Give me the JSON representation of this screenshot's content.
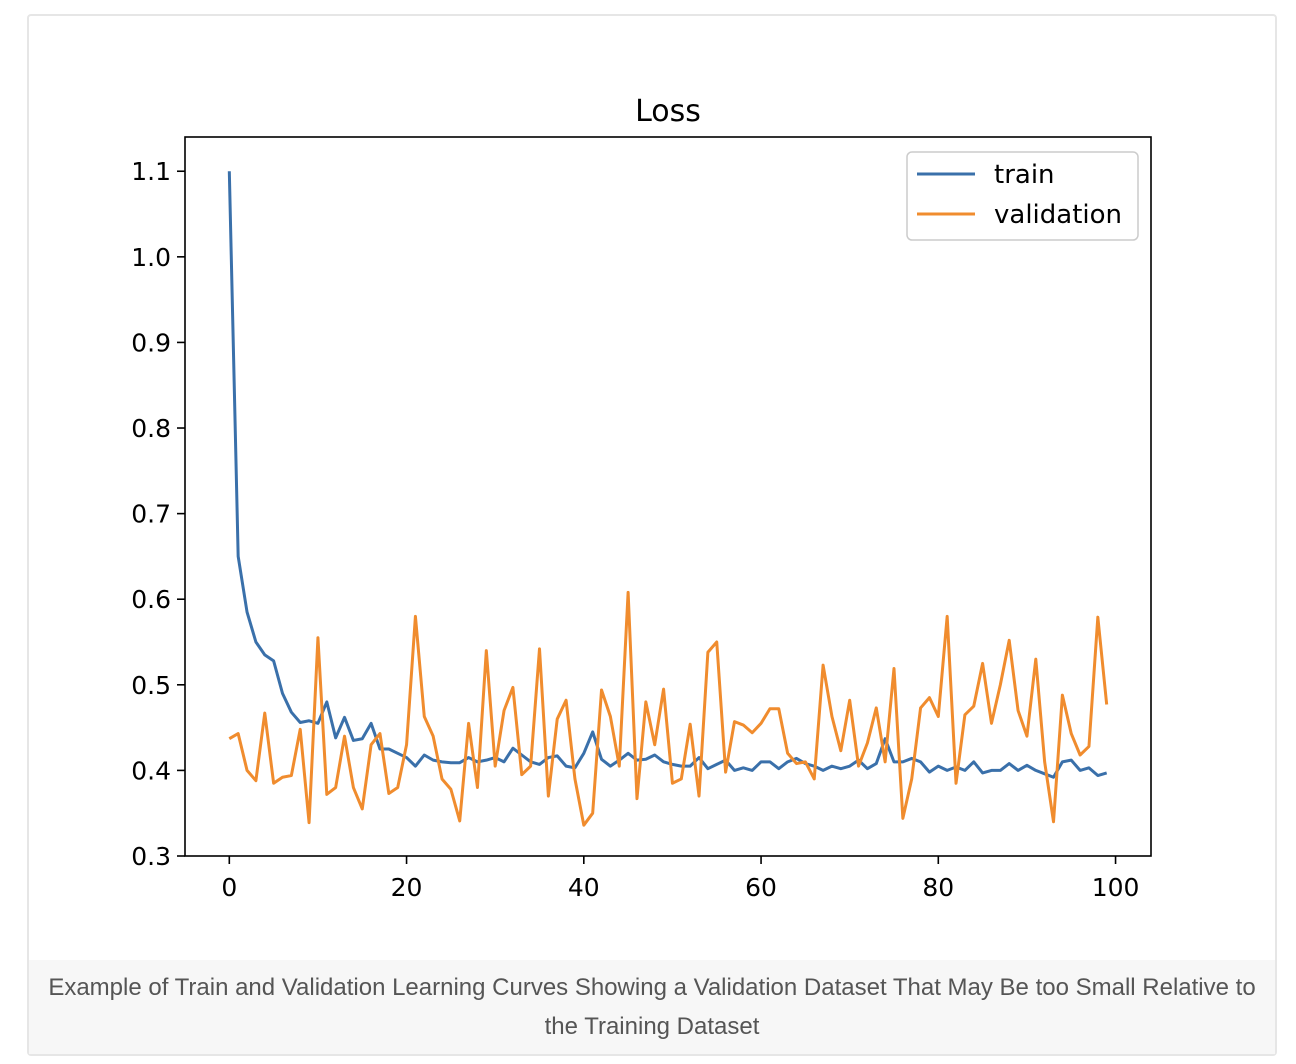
{
  "caption": "Example of Train and Validation Learning Curves Showing a Validation Dataset That May Be too Small Relative to the Training Dataset",
  "chart_data": {
    "type": "line",
    "title": "Loss",
    "xlabel": "",
    "ylabel": "",
    "xlim": [
      -5,
      104
    ],
    "ylim": [
      0.3,
      1.14
    ],
    "xticks": [
      0,
      20,
      40,
      60,
      80,
      100
    ],
    "yticks": [
      0.3,
      0.4,
      0.5,
      0.6,
      0.7,
      0.8,
      0.9,
      1.0,
      1.1
    ],
    "xtick_labels": [
      "0",
      "20",
      "40",
      "60",
      "80",
      "100"
    ],
    "ytick_labels": [
      "0.3",
      "0.4",
      "0.5",
      "0.6",
      "0.7",
      "0.8",
      "0.9",
      "1.0",
      "1.1"
    ],
    "grid": false,
    "legend_position": "top-right",
    "series": [
      {
        "name": "train",
        "color": "#3a70aa",
        "x": [
          0,
          1,
          2,
          3,
          4,
          5,
          6,
          7,
          8,
          9,
          10,
          11,
          12,
          13,
          14,
          15,
          16,
          17,
          18,
          19,
          20,
          21,
          22,
          23,
          24,
          25,
          26,
          27,
          28,
          29,
          30,
          31,
          32,
          33,
          34,
          35,
          36,
          37,
          38,
          39,
          40,
          41,
          42,
          43,
          44,
          45,
          46,
          47,
          48,
          49,
          50,
          51,
          52,
          53,
          54,
          55,
          56,
          57,
          58,
          59,
          60,
          61,
          62,
          63,
          64,
          65,
          66,
          67,
          68,
          69,
          70,
          71,
          72,
          73,
          74,
          75,
          76,
          77,
          78,
          79,
          80,
          81,
          82,
          83,
          84,
          85,
          86,
          87,
          88,
          89,
          90,
          91,
          92,
          93,
          94,
          95,
          96,
          97,
          98,
          99
        ],
        "values": [
          1.1,
          0.65,
          0.585,
          0.55,
          0.535,
          0.528,
          0.49,
          0.468,
          0.456,
          0.458,
          0.455,
          0.48,
          0.438,
          0.462,
          0.435,
          0.437,
          0.455,
          0.425,
          0.425,
          0.42,
          0.415,
          0.405,
          0.418,
          0.412,
          0.41,
          0.409,
          0.409,
          0.415,
          0.41,
          0.412,
          0.415,
          0.41,
          0.426,
          0.418,
          0.41,
          0.407,
          0.415,
          0.417,
          0.405,
          0.403,
          0.42,
          0.445,
          0.413,
          0.405,
          0.412,
          0.42,
          0.412,
          0.413,
          0.418,
          0.41,
          0.407,
          0.405,
          0.405,
          0.415,
          0.402,
          0.407,
          0.412,
          0.4,
          0.403,
          0.4,
          0.41,
          0.41,
          0.402,
          0.41,
          0.414,
          0.408,
          0.405,
          0.4,
          0.405,
          0.402,
          0.405,
          0.412,
          0.402,
          0.408,
          0.437,
          0.41,
          0.41,
          0.414,
          0.41,
          0.398,
          0.405,
          0.4,
          0.404,
          0.4,
          0.41,
          0.397,
          0.4,
          0.4,
          0.408,
          0.4,
          0.406,
          0.4,
          0.396,
          0.392,
          0.41,
          0.412,
          0.4,
          0.403,
          0.394,
          0.397
        ]
      },
      {
        "name": "validation",
        "color": "#f08c2e",
        "x": [
          0,
          1,
          2,
          3,
          4,
          5,
          6,
          7,
          8,
          9,
          10,
          11,
          12,
          13,
          14,
          15,
          16,
          17,
          18,
          19,
          20,
          21,
          22,
          23,
          24,
          25,
          26,
          27,
          28,
          29,
          30,
          31,
          32,
          33,
          34,
          35,
          36,
          37,
          38,
          39,
          40,
          41,
          42,
          43,
          44,
          45,
          46,
          47,
          48,
          49,
          50,
          51,
          52,
          53,
          54,
          55,
          56,
          57,
          58,
          59,
          60,
          61,
          62,
          63,
          64,
          65,
          66,
          67,
          68,
          69,
          70,
          71,
          72,
          73,
          74,
          75,
          76,
          77,
          78,
          79,
          80,
          81,
          82,
          83,
          84,
          85,
          86,
          87,
          88,
          89,
          90,
          91,
          92,
          93,
          94,
          95,
          96,
          97,
          98,
          99
        ],
        "values": [
          0.437,
          0.443,
          0.4,
          0.388,
          0.467,
          0.385,
          0.392,
          0.394,
          0.448,
          0.339,
          0.555,
          0.372,
          0.38,
          0.44,
          0.38,
          0.355,
          0.43,
          0.443,
          0.373,
          0.38,
          0.43,
          0.58,
          0.463,
          0.44,
          0.39,
          0.378,
          0.341,
          0.455,
          0.38,
          0.54,
          0.405,
          0.47,
          0.497,
          0.395,
          0.405,
          0.542,
          0.37,
          0.46,
          0.482,
          0.39,
          0.336,
          0.35,
          0.494,
          0.463,
          0.405,
          0.608,
          0.367,
          0.48,
          0.43,
          0.495,
          0.385,
          0.39,
          0.454,
          0.37,
          0.538,
          0.55,
          0.398,
          0.457,
          0.453,
          0.444,
          0.455,
          0.472,
          0.472,
          0.42,
          0.408,
          0.41,
          0.39,
          0.523,
          0.463,
          0.423,
          0.482,
          0.405,
          0.432,
          0.473,
          0.41,
          0.519,
          0.344,
          0.39,
          0.473,
          0.485,
          0.463,
          0.58,
          0.385,
          0.465,
          0.475,
          0.525,
          0.455,
          0.5,
          0.552,
          0.47,
          0.44,
          0.53,
          0.41,
          0.34,
          0.488,
          0.443,
          0.418,
          0.428,
          0.579,
          0.477
        ]
      }
    ]
  }
}
